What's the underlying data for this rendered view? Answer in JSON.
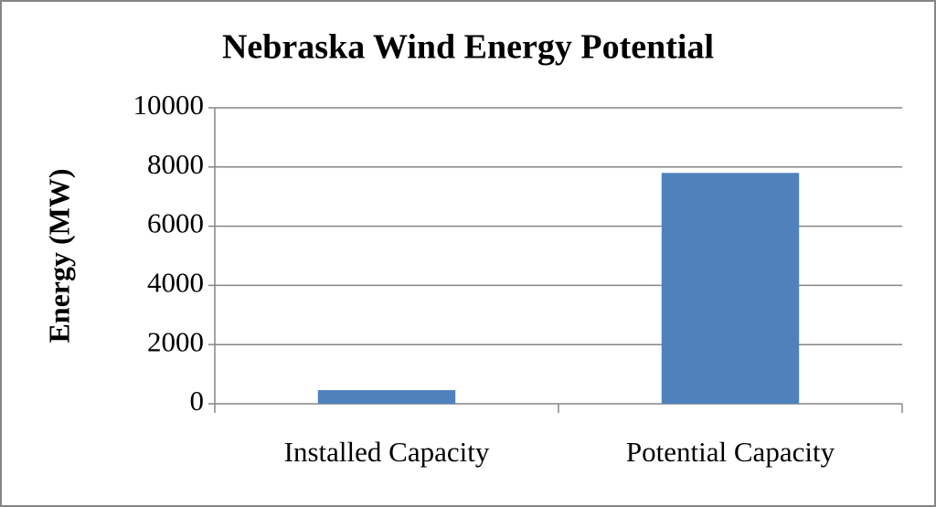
{
  "chart_data": {
    "type": "bar",
    "title": "Nebraska Wind Energy Potential",
    "y_label": "Energy (MW)",
    "categories": [
      "Installed Capacity",
      "Potential Capacity"
    ],
    "values": [
      460,
      7800
    ],
    "color": "#4f81bd",
    "ylim": [
      0,
      10000
    ],
    "yticks": [
      0,
      2000,
      4000,
      6000,
      8000,
      10000
    ],
    "grid": true
  }
}
